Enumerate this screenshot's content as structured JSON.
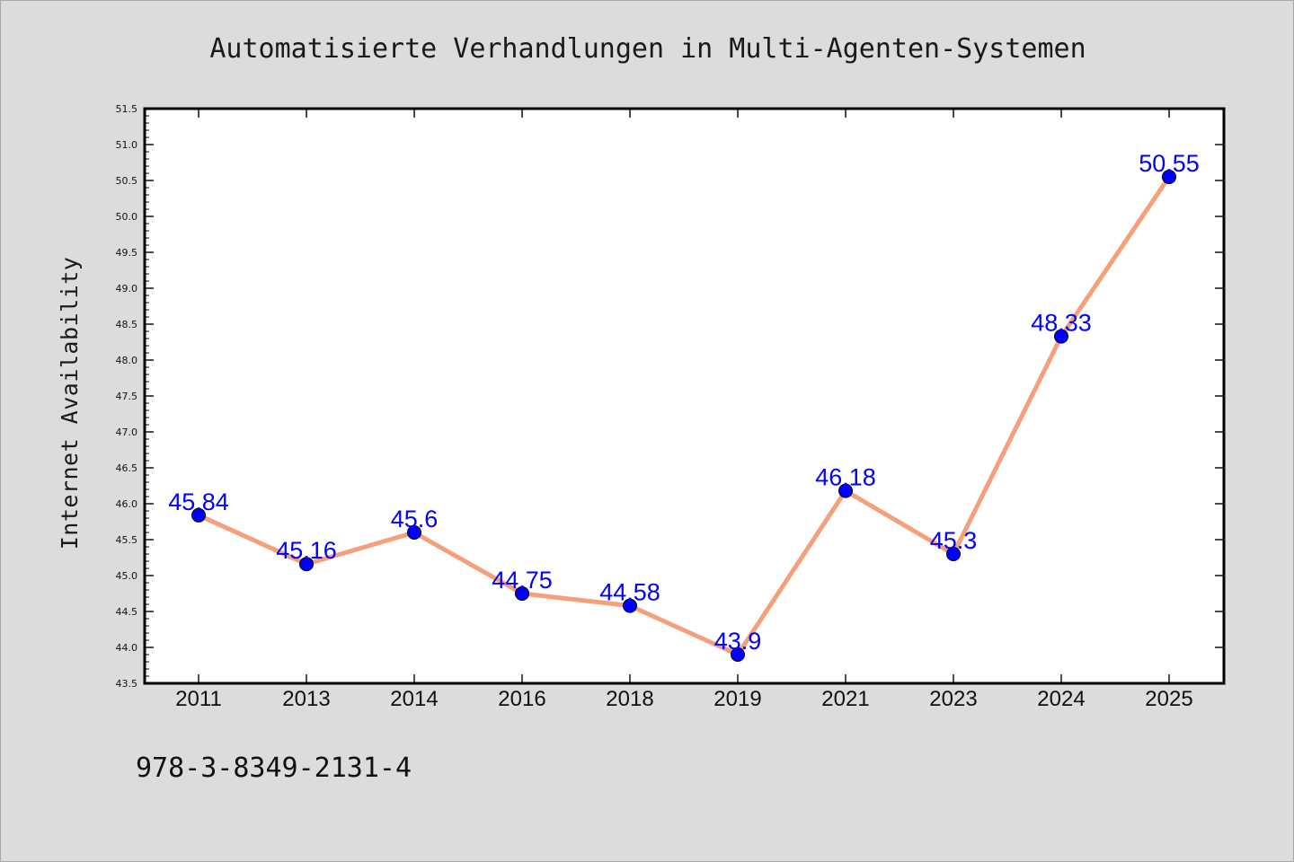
{
  "chart_data": {
    "type": "line",
    "title": "Automatisierte Verhandlungen in Multi-Agenten-Systemen",
    "ylabel": "Internet Availability",
    "xlabel": "",
    "categories": [
      "2011",
      "2013",
      "2014",
      "2016",
      "2018",
      "2019",
      "2021",
      "2023",
      "2024",
      "2025"
    ],
    "series": [
      {
        "values": [
          45.84,
          45.16,
          45.6,
          44.75,
          44.58,
          43.9,
          46.18,
          45.3,
          48.33,
          50.55
        ],
        "data_labels": [
          "45.84",
          "45.16",
          "45.6",
          "44.75",
          "44.58",
          "43.9",
          "46.18",
          "45.3",
          "48.33",
          "50.55"
        ]
      }
    ],
    "ylim": [
      43.5,
      51.5
    ],
    "yticks": [
      "43.5",
      "44.0",
      "44.5",
      "45.0",
      "45.5",
      "46.0",
      "46.5",
      "47.0",
      "47.5",
      "48.0",
      "48.5",
      "49.0",
      "49.5",
      "50.0",
      "50.5",
      "51.0",
      "51.5"
    ],
    "grid": false,
    "legend": "none",
    "colors": {
      "line": "#f4a07a",
      "marker": "#0000ff",
      "data_label": "#0000ff",
      "background": "#dcdcdc",
      "plot_background": "#ffffff"
    }
  },
  "footnote": "978-3-8349-2131-4"
}
